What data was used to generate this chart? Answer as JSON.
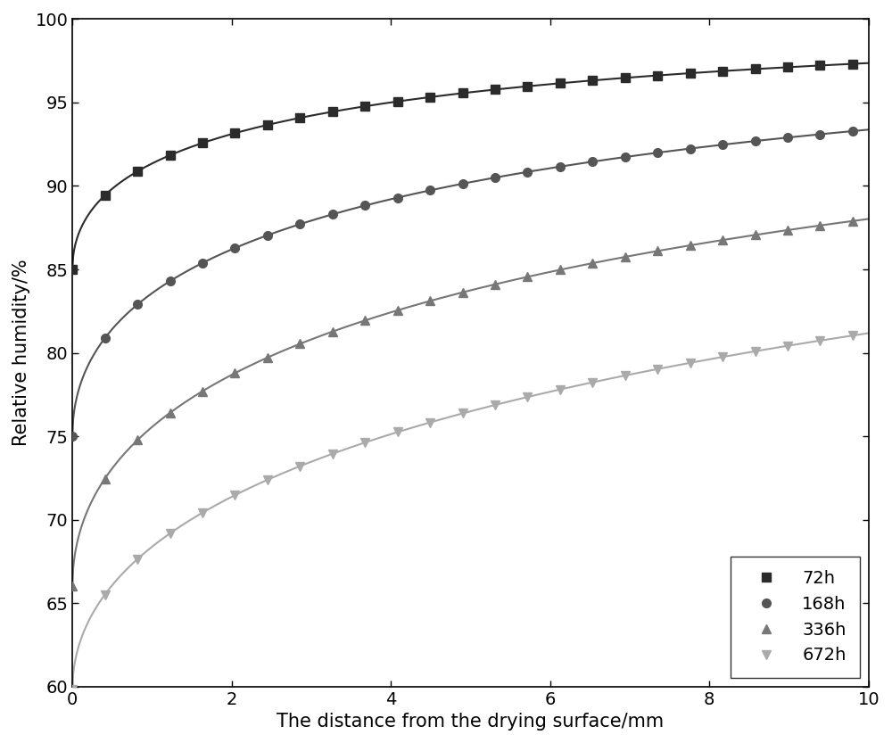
{
  "title": "",
  "xlabel": "The distance from the drying surface/mm",
  "ylabel": "Relative humidity/%",
  "xlim": [
    0,
    10
  ],
  "ylim": [
    60,
    100
  ],
  "xticks": [
    0,
    2,
    4,
    6,
    8,
    10
  ],
  "yticks": [
    60,
    65,
    70,
    75,
    80,
    85,
    90,
    95,
    100
  ],
  "series": [
    {
      "label": "72h",
      "color": "#2b2b2b",
      "marker": "s",
      "markersize": 7,
      "y0": 85.0,
      "y_inf": 100.0,
      "k": 0.55
    },
    {
      "label": "168h",
      "color": "#555555",
      "marker": "o",
      "markersize": 7,
      "y0": 75.0,
      "y_inf": 100.0,
      "k": 0.42
    },
    {
      "label": "336h",
      "color": "#777777",
      "marker": "^",
      "markersize": 7,
      "y0": 66.0,
      "y_inf": 100.0,
      "k": 0.33
    },
    {
      "label": "672h",
      "color": "#aaaaaa",
      "marker": "v",
      "markersize": 7,
      "y0": 59.8,
      "y_inf": 100.0,
      "k": 0.24
    }
  ],
  "marker_x_start": 0.0,
  "marker_x_end": 9.8,
  "marker_count": 25,
  "legend_loc": "lower right",
  "figsize": [
    10.0,
    8.33
  ],
  "dpi": 100,
  "background_color": "#ffffff",
  "spine_color": "#000000",
  "fontsize_ticks": 14,
  "fontsize_labels": 15,
  "fontsize_legend": 14,
  "linewidth": 1.5
}
